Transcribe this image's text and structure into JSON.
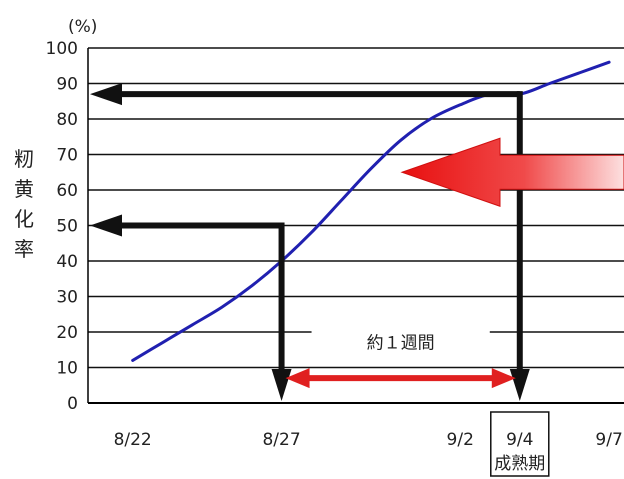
{
  "chart_data": {
    "type": "line",
    "unit_label": "(%)",
    "ylabel": "籾黄化率",
    "xlabel": "",
    "title": "",
    "ylim": [
      0,
      100
    ],
    "yticks": [
      0,
      10,
      20,
      30,
      40,
      50,
      60,
      70,
      80,
      90,
      100
    ],
    "x_range": [
      -1.5,
      16.5
    ],
    "xticks": [
      {
        "pos": 0,
        "label": "8/22"
      },
      {
        "pos": 5,
        "label": "8/27"
      },
      {
        "pos": 11,
        "label": "9/2"
      },
      {
        "pos": 13,
        "label": "9/4"
      },
      {
        "pos": 16,
        "label": "9/7"
      }
    ],
    "highlight_tick": {
      "pos": 13,
      "label": "9/4",
      "sublabel": "成熟期"
    },
    "grid": true,
    "series": [
      {
        "color": "#2020b0",
        "x": [
          0,
          1,
          2,
          3,
          4,
          5,
          6,
          7,
          8,
          9,
          10,
          11,
          12,
          13,
          14,
          15,
          16
        ],
        "y": [
          12,
          17,
          22,
          27,
          33,
          40,
          48,
          57,
          66,
          74,
          80,
          84,
          87,
          87,
          90,
          93,
          96
        ]
      }
    ],
    "annotations": {
      "arrow_50": {
        "x": 5,
        "y": 50
      },
      "arrow_87": {
        "x": 13,
        "y": 87
      },
      "range_label": "約１週間",
      "red_arrow_y": 65,
      "accent_color": "#e02020",
      "arrow_color": "#111111"
    }
  }
}
